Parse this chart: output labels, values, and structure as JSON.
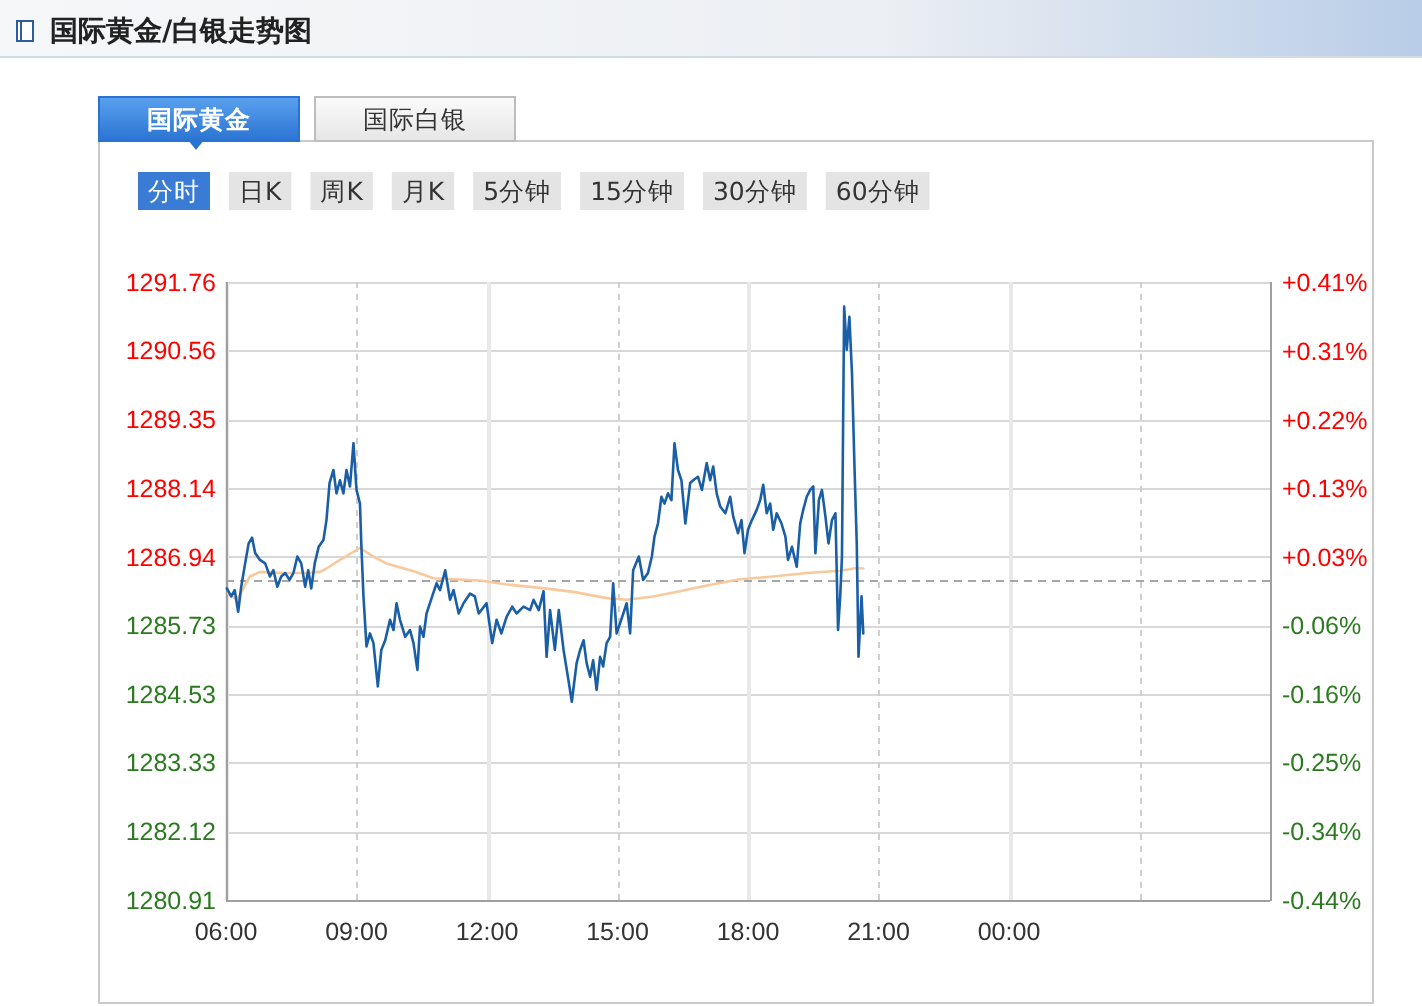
{
  "chart_data": {
    "type": "line",
    "title": "国际黄金/白银走势图",
    "annotations": [
      "国际黄金",
      "国际白银",
      "分时",
      "日K",
      "周K",
      "月K",
      "5分钟",
      "15分钟",
      "30分钟",
      "60分钟"
    ],
    "xlim": [
      6,
      30
    ],
    "xticks": [
      {
        "value": 6,
        "label": "06:00"
      },
      {
        "value": 9,
        "label": "09:00"
      },
      {
        "value": 12,
        "label": "12:00"
      },
      {
        "value": 15,
        "label": "15:00"
      },
      {
        "value": 18,
        "label": "18:00"
      },
      {
        "value": 21,
        "label": "21:00"
      },
      {
        "value": 24,
        "label": "00:00"
      },
      {
        "value": 27,
        "label": null
      }
    ],
    "ylim": [
      1280.91,
      1291.76
    ],
    "yticks": [
      1280.91,
      1282.12,
      1283.33,
      1284.53,
      1285.73,
      1286.94,
      1288.14,
      1289.35,
      1290.56,
      1291.76
    ],
    "y2lim": [
      -0.437,
      0.407
    ],
    "y2ticks": [
      {
        "value": -0.437,
        "label": "-0.44%"
      },
      {
        "value": -0.343,
        "label": "-0.34%"
      },
      {
        "value": -0.249,
        "label": "-0.25%"
      },
      {
        "value": -0.156,
        "label": "-0.16%"
      },
      {
        "value": -0.062,
        "label": "-0.06%"
      },
      {
        "value": 0.032,
        "label": "+0.03%"
      },
      {
        "value": 0.125,
        "label": "+0.13%"
      },
      {
        "value": 0.219,
        "label": "+0.22%"
      },
      {
        "value": 0.313,
        "label": "+0.31%"
      },
      {
        "value": 0.407,
        "label": "+0.41%"
      }
    ],
    "grid": true,
    "ref_lines": [
      {
        "axis": "y",
        "value": 1286.53,
        "color": "#a6a6a6",
        "line_style": "dashed"
      }
    ],
    "series": [
      {
        "color": "#f7c99c",
        "x": [
          6.05,
          6.25,
          6.55,
          6.78,
          7.24,
          7.85,
          8.16,
          8.31,
          8.62,
          9.08,
          9.39,
          9.69,
          10.31,
          10.77,
          11.23,
          11.84,
          12.45,
          13.22,
          13.99,
          14.75,
          15.21,
          15.82,
          16.44,
          17.05,
          17.82,
          18.58,
          19.35,
          20.12,
          20.5,
          20.65
        ],
        "values": [
          1286.29,
          1286.18,
          1286.59,
          1286.67,
          1286.65,
          1286.65,
          1286.67,
          1286.73,
          1286.88,
          1287.09,
          1286.94,
          1286.82,
          1286.68,
          1286.56,
          1286.54,
          1286.52,
          1286.45,
          1286.39,
          1286.32,
          1286.21,
          1286.18,
          1286.24,
          1286.33,
          1286.43,
          1286.54,
          1286.59,
          1286.65,
          1286.69,
          1286.74,
          1286.73
        ]
      },
      {
        "color": "#1a5ea6",
        "x": [
          6.02,
          6.12,
          6.2,
          6.28,
          6.35,
          6.44,
          6.52,
          6.6,
          6.67,
          6.78,
          6.9,
          7.01,
          7.09,
          7.18,
          7.27,
          7.36,
          7.46,
          7.55,
          7.64,
          7.73,
          7.82,
          7.89,
          7.96,
          8.04,
          8.13,
          8.24,
          8.31,
          8.38,
          8.47,
          8.54,
          8.62,
          8.7,
          8.77,
          8.85,
          8.93,
          9.0,
          9.08,
          9.11,
          9.16,
          9.23,
          9.31,
          9.39,
          9.49,
          9.57,
          9.66,
          9.77,
          9.85,
          9.92,
          10.0,
          10.12,
          10.23,
          10.31,
          10.4,
          10.46,
          10.54,
          10.61,
          10.74,
          10.84,
          10.92,
          11.04,
          11.15,
          11.23,
          11.35,
          11.46,
          11.61,
          11.72,
          11.81,
          11.99,
          12.12,
          12.22,
          12.33,
          12.45,
          12.58,
          12.68,
          12.84,
          12.99,
          13.07,
          13.19,
          13.3,
          13.37,
          13.45,
          13.56,
          13.65,
          13.76,
          13.86,
          13.95,
          14.06,
          14.14,
          14.22,
          14.29,
          14.37,
          14.44,
          14.52,
          14.6,
          14.67,
          14.75,
          14.83,
          14.9,
          14.98,
          15.06,
          15.21,
          15.29,
          15.36,
          15.49,
          15.59,
          15.7,
          15.79,
          15.85,
          15.93,
          16.01,
          16.08,
          16.16,
          16.24,
          16.31,
          16.39,
          16.47,
          16.56,
          16.67,
          16.74,
          16.85,
          16.94,
          17.05,
          17.13,
          17.2,
          17.28,
          17.36,
          17.48,
          17.59,
          17.66,
          17.77,
          17.85,
          17.92,
          18.0,
          18.09,
          18.2,
          18.28,
          18.35,
          18.43,
          18.51,
          18.58,
          18.66,
          18.77,
          18.86,
          18.92,
          19.01,
          19.12,
          19.2,
          19.27,
          19.35,
          19.43,
          19.5,
          19.55,
          19.63,
          19.7,
          19.78,
          19.85,
          19.93,
          20.01,
          20.07,
          20.12,
          20.16,
          20.21,
          20.27,
          20.33,
          20.39,
          20.45,
          20.5,
          20.54,
          20.61,
          20.65
        ],
        "values": [
          1286.38,
          1286.24,
          1286.35,
          1285.97,
          1286.41,
          1286.82,
          1287.17,
          1287.27,
          1287.0,
          1286.88,
          1286.82,
          1286.59,
          1286.7,
          1286.41,
          1286.59,
          1286.65,
          1286.53,
          1286.65,
          1286.94,
          1286.82,
          1286.41,
          1286.7,
          1286.38,
          1286.82,
          1287.11,
          1287.23,
          1287.58,
          1288.23,
          1288.46,
          1288.05,
          1288.28,
          1288.05,
          1288.46,
          1288.17,
          1288.93,
          1288.11,
          1287.87,
          1287.17,
          1286.24,
          1285.36,
          1285.59,
          1285.42,
          1284.66,
          1285.3,
          1285.47,
          1285.83,
          1285.65,
          1286.12,
          1285.83,
          1285.53,
          1285.65,
          1285.42,
          1284.95,
          1285.71,
          1285.53,
          1285.94,
          1286.24,
          1286.47,
          1286.35,
          1286.7,
          1286.18,
          1286.35,
          1285.94,
          1286.12,
          1286.29,
          1286.24,
          1285.94,
          1286.12,
          1285.42,
          1285.83,
          1285.59,
          1285.88,
          1286.06,
          1285.94,
          1286.06,
          1286.0,
          1286.18,
          1286.0,
          1286.33,
          1285.18,
          1286.0,
          1285.3,
          1286.0,
          1285.3,
          1284.83,
          1284.39,
          1285.07,
          1285.3,
          1285.47,
          1285.07,
          1284.83,
          1285.12,
          1284.6,
          1285.18,
          1285.01,
          1285.42,
          1285.53,
          1286.47,
          1285.59,
          1285.77,
          1286.12,
          1285.59,
          1286.7,
          1286.94,
          1286.53,
          1286.65,
          1286.94,
          1287.29,
          1287.52,
          1287.99,
          1287.87,
          1288.05,
          1287.93,
          1288.93,
          1288.46,
          1288.28,
          1287.52,
          1288.23,
          1288.28,
          1288.34,
          1288.11,
          1288.58,
          1288.28,
          1288.52,
          1288.05,
          1287.82,
          1287.7,
          1287.99,
          1287.64,
          1287.35,
          1287.58,
          1287.0,
          1287.41,
          1287.58,
          1287.76,
          1287.93,
          1288.2,
          1287.7,
          1287.87,
          1287.41,
          1287.7,
          1287.52,
          1287.29,
          1286.88,
          1287.11,
          1286.76,
          1287.52,
          1287.76,
          1287.99,
          1288.11,
          1288.17,
          1287.0,
          1287.93,
          1288.11,
          1287.64,
          1287.17,
          1287.58,
          1287.7,
          1285.65,
          1286.24,
          1286.94,
          1291.33,
          1290.57,
          1291.15,
          1290.16,
          1288.46,
          1287.17,
          1285.18,
          1286.24,
          1285.59
        ]
      }
    ]
  }
}
